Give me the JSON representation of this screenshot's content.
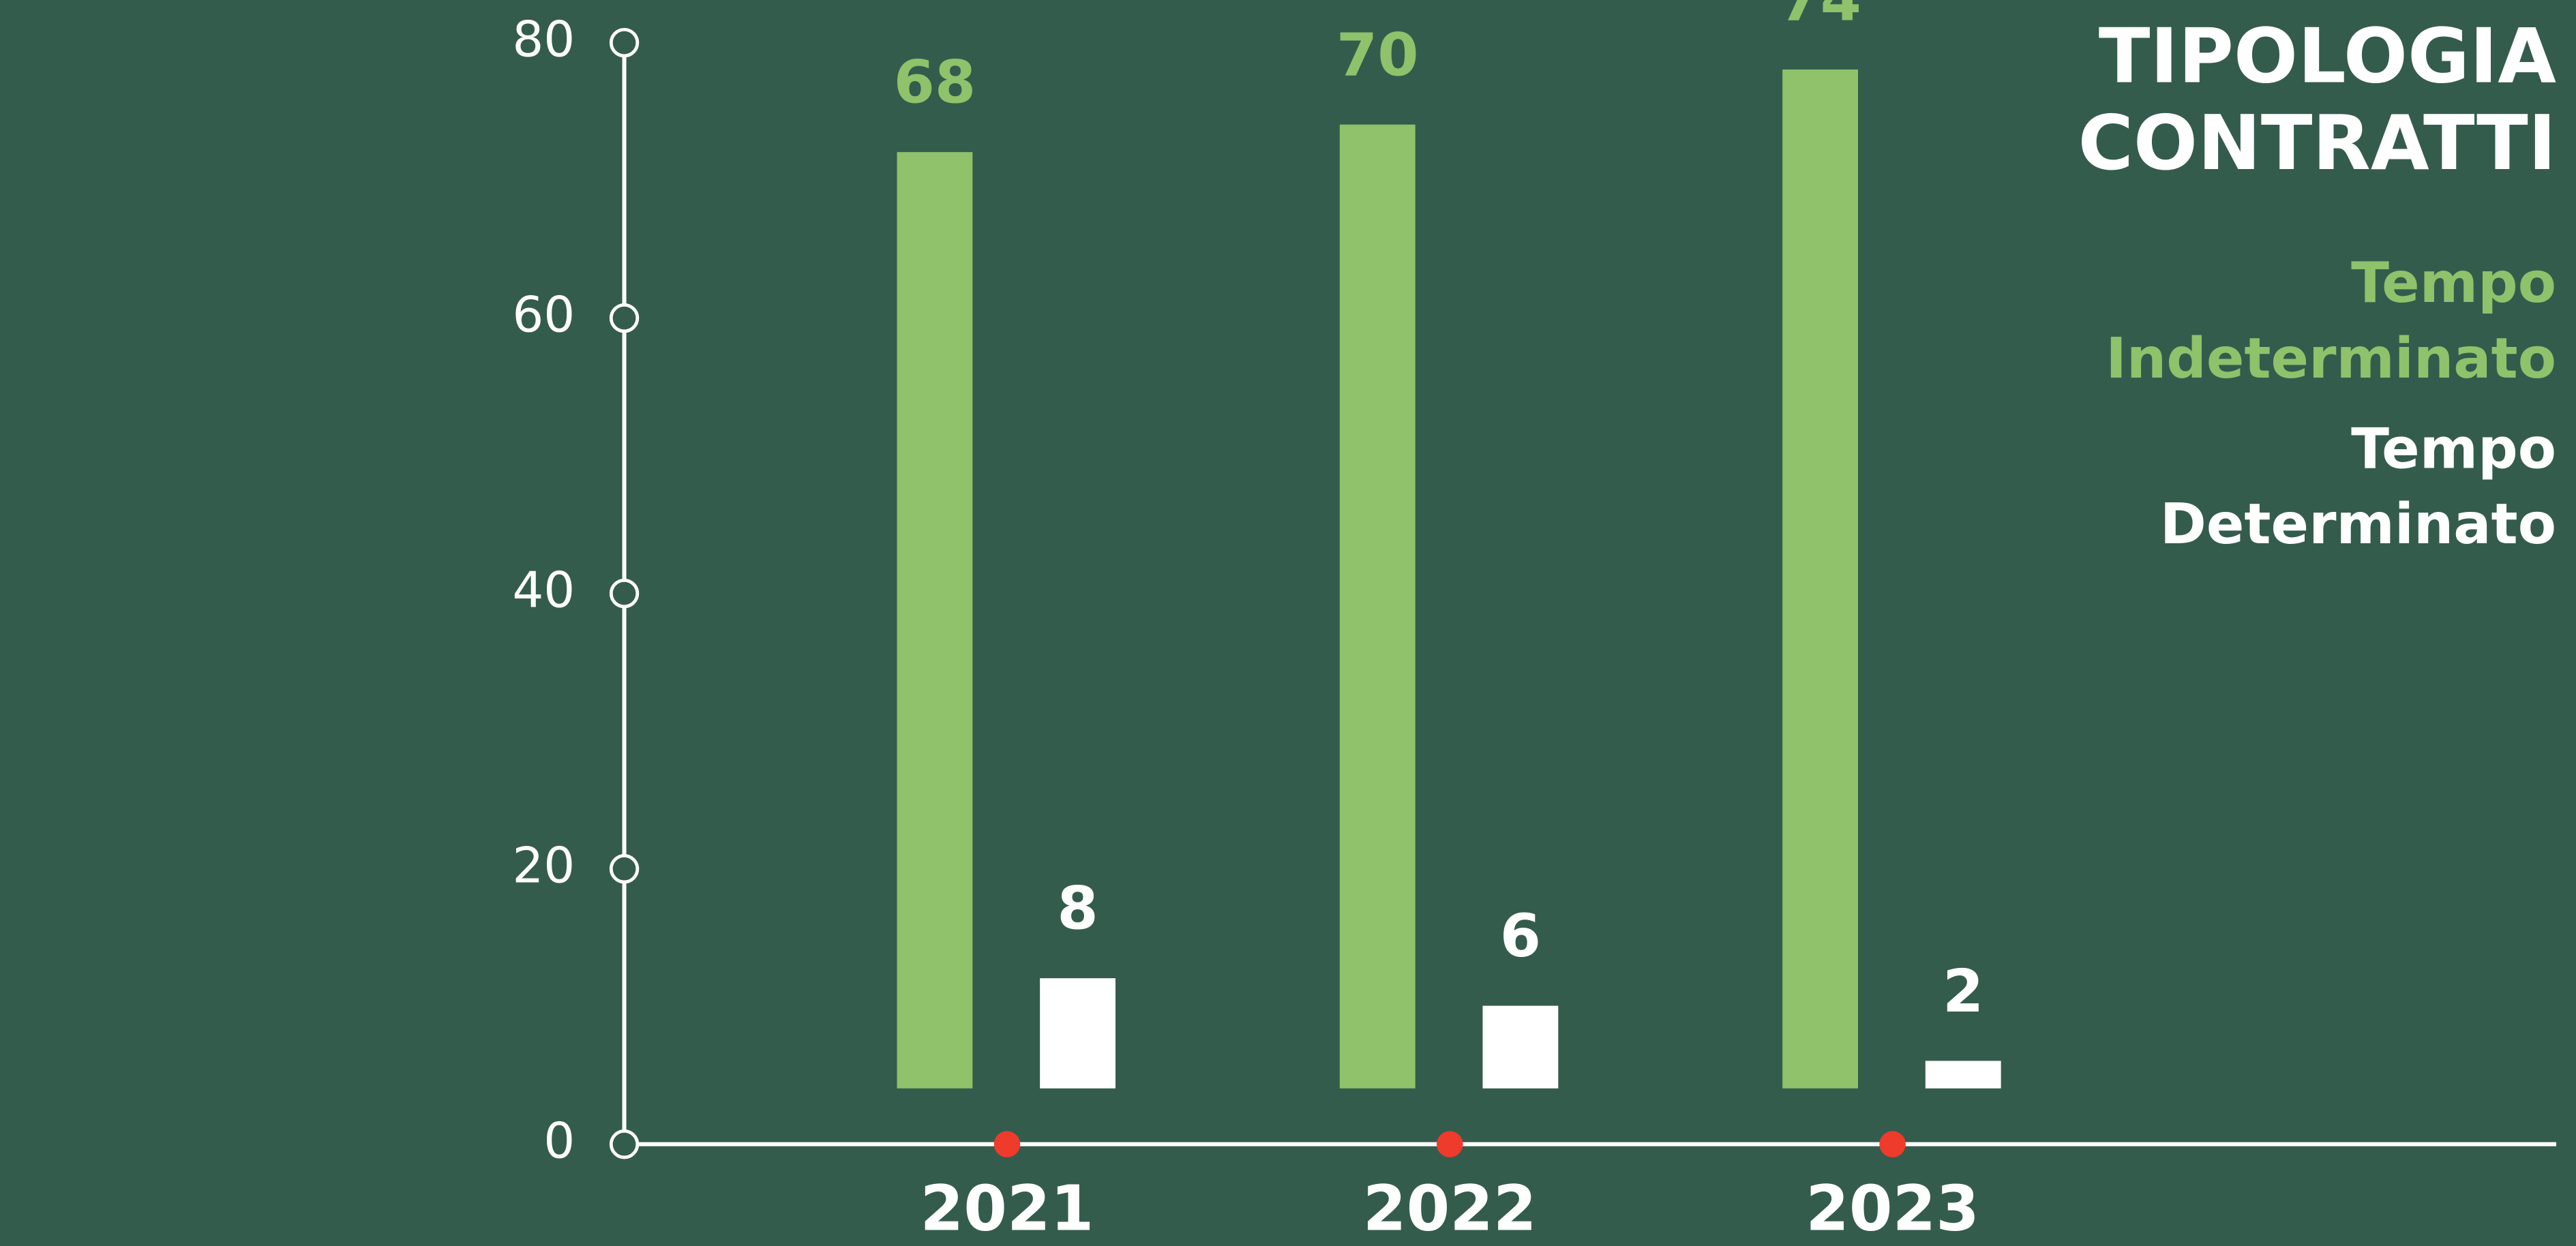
{
  "chart_data": {
    "type": "bar",
    "title": "TIPOLOGIA CONTRATTI",
    "categories": [
      "2021",
      "2022",
      "2023"
    ],
    "series": [
      {
        "name": "Tempo Indeterminato",
        "color": "#8fc26a",
        "values": [
          68,
          70,
          74
        ]
      },
      {
        "name": "Tempo Determinato",
        "color": "#ffffff",
        "values": [
          8,
          6,
          2
        ]
      }
    ],
    "ylim": [
      0,
      80
    ],
    "yticks": [
      0,
      20,
      40,
      60,
      80
    ],
    "legend": "top-right"
  }
}
